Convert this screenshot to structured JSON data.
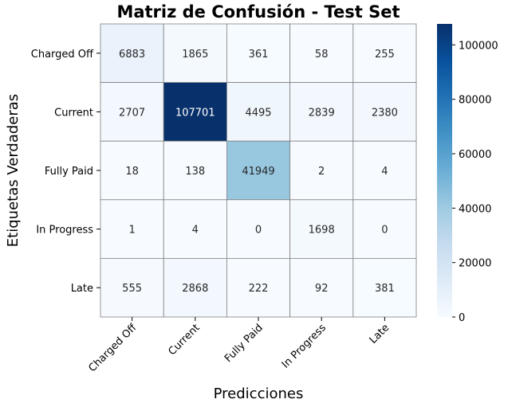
{
  "chart_data": {
    "type": "heatmap",
    "title": "Matriz de Confusión - Test Set",
    "xlabel": "Predicciones",
    "ylabel": "Etiquetas Verdaderas",
    "x_categories": [
      "Charged Off",
      "Current",
      "Fully Paid",
      "In Progress",
      "Late"
    ],
    "y_categories": [
      "Charged Off",
      "Current",
      "Fully Paid",
      "In Progress",
      "Late"
    ],
    "values": [
      [
        6883,
        1865,
        361,
        58,
        255
      ],
      [
        2707,
        107701,
        4495,
        2839,
        2380
      ],
      [
        18,
        138,
        41949,
        2,
        4
      ],
      [
        1,
        4,
        0,
        1698,
        0
      ],
      [
        555,
        2868,
        222,
        92,
        381
      ]
    ],
    "colorbar": {
      "colormap": "Blues",
      "range": [
        0,
        107701
      ],
      "ticks": [
        0,
        20000,
        40000,
        60000,
        80000,
        100000
      ]
    },
    "grid": true
  }
}
